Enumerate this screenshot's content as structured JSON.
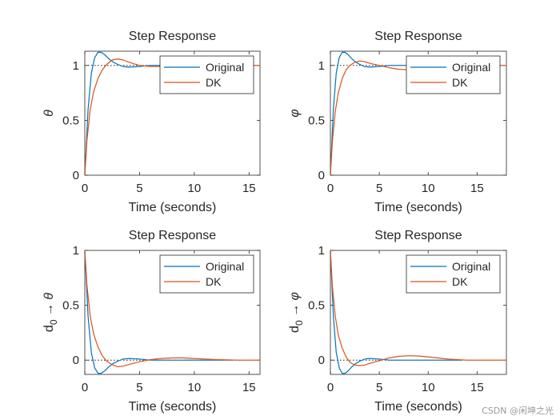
{
  "watermark": "CSDN @闲坤之光",
  "colors": {
    "original": "#0072BD",
    "dk": "#D95319",
    "axis": "#262626",
    "ref": "#000000"
  },
  "chart_data": [
    {
      "type": "line",
      "title": "Step Response",
      "xlabel": "Time (seconds)",
      "ylabel": "θ",
      "ylabel_parts": [
        {
          "text": "θ",
          "italic": true
        }
      ],
      "xlim": [
        0,
        16
      ],
      "ylim": [
        0,
        1.13
      ],
      "xticks": [
        0,
        5,
        10,
        15
      ],
      "yticks": [
        0,
        0.5,
        1
      ],
      "ref_line": 1,
      "legend": [
        "Original",
        "DK"
      ],
      "legend_position": "top-right",
      "series": [
        {
          "name": "Original",
          "x": [
            0,
            0.3,
            0.6,
            0.9,
            1.2,
            1.5,
            1.8,
            2.2,
            2.6,
            3.0,
            3.5,
            4.0,
            5.0,
            6.0,
            8.0,
            10.0,
            13.5
          ],
          "y": [
            0,
            0.6,
            0.93,
            1.07,
            1.12,
            1.12,
            1.1,
            1.06,
            1.03,
            1.01,
            0.99,
            0.985,
            0.99,
            1.0,
            1.0,
            1.0,
            1.0
          ]
        },
        {
          "name": "DK",
          "x": [
            0,
            0.2,
            0.5,
            0.8,
            1.2,
            1.6,
            2.0,
            2.5,
            3.0,
            3.5,
            4.0,
            4.5,
            5.0,
            6.0,
            7.0,
            8.0,
            10.0,
            13.0,
            16.0
          ],
          "y": [
            0,
            0.32,
            0.6,
            0.76,
            0.88,
            0.96,
            1.01,
            1.05,
            1.06,
            1.05,
            1.03,
            1.015,
            1.0,
            0.99,
            0.99,
            0.995,
            1.0,
            1.0,
            1.0
          ]
        }
      ]
    },
    {
      "type": "line",
      "title": "Step Response",
      "xlabel": "Time (seconds)",
      "ylabel": "φ",
      "ylabel_parts": [
        {
          "text": "φ",
          "italic": true
        }
      ],
      "xlim": [
        0,
        18
      ],
      "ylim": [
        0,
        1.13
      ],
      "xticks": [
        0,
        5,
        10,
        15
      ],
      "yticks": [
        0,
        0.5,
        1
      ],
      "ref_line": 1,
      "legend": [
        "Original",
        "DK"
      ],
      "legend_position": "top-right",
      "series": [
        {
          "name": "Original",
          "x": [
            0,
            0.3,
            0.6,
            0.9,
            1.2,
            1.5,
            1.8,
            2.2,
            2.6,
            3.0,
            3.5,
            4.0,
            5.0,
            6.0,
            8.0,
            10.0,
            13.5
          ],
          "y": [
            0,
            0.6,
            0.93,
            1.07,
            1.12,
            1.12,
            1.1,
            1.06,
            1.03,
            1.01,
            0.99,
            0.985,
            0.99,
            1.0,
            1.0,
            1.0,
            1.0
          ]
        },
        {
          "name": "DK",
          "x": [
            0,
            0.2,
            0.5,
            0.8,
            1.2,
            1.6,
            2.0,
            2.5,
            3.0,
            3.5,
            4.0,
            5.0,
            6.0,
            7.0,
            8.0,
            9.0,
            10.0,
            12.0,
            14.0,
            16.0,
            18.0
          ],
          "y": [
            0,
            0.3,
            0.58,
            0.75,
            0.88,
            0.96,
            1.0,
            1.03,
            1.04,
            1.035,
            1.02,
            1.0,
            0.98,
            0.965,
            0.96,
            0.965,
            0.975,
            0.99,
            1.0,
            1.0,
            1.0
          ]
        }
      ]
    },
    {
      "type": "line",
      "title": "Step Response",
      "xlabel": "Time (seconds)",
      "ylabel": "d0 → θ",
      "ylabel_parts": [
        {
          "text": "d"
        },
        {
          "text": "0",
          "sub": true
        },
        {
          "text": " → "
        },
        {
          "text": "θ",
          "italic": true
        }
      ],
      "xlim": [
        0,
        16
      ],
      "ylim": [
        -0.13,
        1.0
      ],
      "xticks": [
        0,
        5,
        10,
        15
      ],
      "yticks": [
        0,
        0.5,
        1
      ],
      "ref_line": 0,
      "legend": [
        "Original",
        "DK"
      ],
      "legend_position": "top-right",
      "series": [
        {
          "name": "Original",
          "x": [
            0,
            0.3,
            0.6,
            0.9,
            1.2,
            1.5,
            1.8,
            2.2,
            2.6,
            3.0,
            3.5,
            4.0,
            5.0,
            6.0,
            8.0,
            10.0,
            13.5
          ],
          "y": [
            1.0,
            0.4,
            0.07,
            -0.07,
            -0.12,
            -0.12,
            -0.1,
            -0.06,
            -0.03,
            -0.01,
            0.01,
            0.015,
            0.01,
            0.0,
            0.0,
            0.0,
            0.0
          ]
        },
        {
          "name": "DK",
          "x": [
            0,
            0.2,
            0.5,
            0.8,
            1.2,
            1.6,
            2.0,
            2.5,
            3.0,
            3.5,
            4.0,
            5.0,
            6.0,
            7.0,
            8.0,
            9.0,
            10.0,
            12.0,
            14.0,
            16.0
          ],
          "y": [
            1.0,
            0.68,
            0.4,
            0.24,
            0.12,
            0.04,
            -0.01,
            -0.04,
            -0.06,
            -0.055,
            -0.04,
            -0.015,
            0.005,
            0.015,
            0.02,
            0.02,
            0.015,
            0.005,
            0.0,
            0.0
          ]
        }
      ]
    },
    {
      "type": "line",
      "title": "Step Response",
      "xlabel": "Time (seconds)",
      "ylabel": "d0 → φ",
      "ylabel_parts": [
        {
          "text": "d"
        },
        {
          "text": "0",
          "sub": true
        },
        {
          "text": " → "
        },
        {
          "text": "φ",
          "italic": true
        }
      ],
      "xlim": [
        0,
        18
      ],
      "ylim": [
        -0.13,
        1.0
      ],
      "xticks": [
        0,
        5,
        10,
        15
      ],
      "yticks": [
        0,
        0.5,
        1
      ],
      "ref_line": 0,
      "legend": [
        "Original",
        "DK"
      ],
      "legend_position": "top-right",
      "series": [
        {
          "name": "Original",
          "x": [
            0,
            0.3,
            0.6,
            0.9,
            1.2,
            1.5,
            1.8,
            2.2,
            2.6,
            3.0,
            3.5,
            4.0,
            5.0,
            6.0,
            8.0,
            10.0,
            13.5
          ],
          "y": [
            1.0,
            0.4,
            0.07,
            -0.07,
            -0.12,
            -0.12,
            -0.1,
            -0.06,
            -0.03,
            -0.01,
            0.01,
            0.015,
            0.01,
            0.0,
            0.0,
            0.0,
            0.0
          ]
        },
        {
          "name": "DK",
          "x": [
            0,
            0.2,
            0.5,
            0.8,
            1.2,
            1.6,
            2.0,
            2.5,
            3.0,
            3.5,
            4.0,
            5.0,
            6.0,
            7.0,
            8.0,
            9.0,
            10.0,
            11.0,
            12.0,
            14.0,
            16.0,
            18.0
          ],
          "y": [
            1.0,
            0.68,
            0.4,
            0.23,
            0.11,
            0.03,
            -0.02,
            -0.045,
            -0.05,
            -0.045,
            -0.03,
            -0.005,
            0.02,
            0.035,
            0.04,
            0.038,
            0.03,
            0.02,
            0.01,
            0.0,
            0.0,
            0.0
          ]
        }
      ]
    }
  ]
}
